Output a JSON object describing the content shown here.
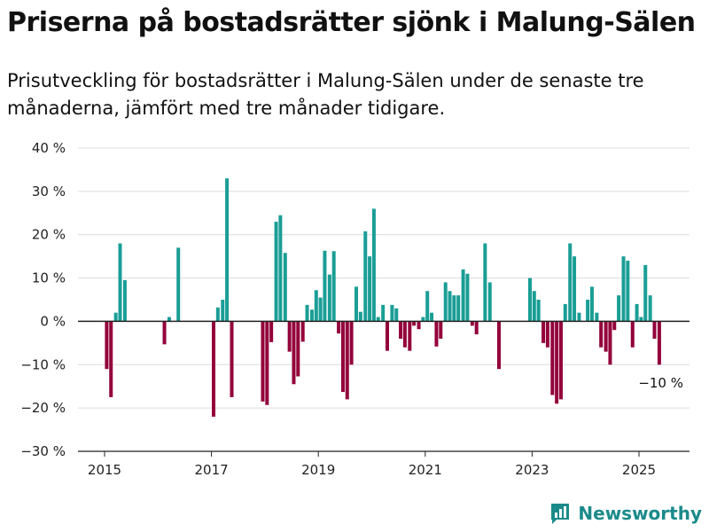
{
  "title": "Priserna på bostadsrätter sjönk i Malung-Sälen",
  "subtitle": "Prisutveckling för bostadsrätter i Malung-Sälen under de senaste tre månaderna, jämfört med tre månader tidigare.",
  "brand": "Newsworthy",
  "chart_data": {
    "type": "bar",
    "title": "Priserna på bostadsrätter sjönk i Malung-Sälen",
    "subtitle": "Prisutveckling för bostadsrätter i Malung-Sälen under de senaste tre månaderna, jämfört med tre månader tidigare.",
    "xlabel": "",
    "ylabel": "",
    "ylim": [
      -30,
      40
    ],
    "grid": true,
    "y_ticks": [
      -30,
      -20,
      -10,
      0,
      10,
      20,
      30,
      40
    ],
    "y_tick_labels": [
      "−30 %",
      "−20 %",
      "−10 %",
      "0 %",
      "10 %",
      "20 %",
      "30 %",
      "40 %"
    ],
    "x_ticks": [
      2015,
      2017,
      2019,
      2021,
      2023,
      2025
    ],
    "x_tick_labels": [
      "2015",
      "2017",
      "2019",
      "2021",
      "2023",
      "2025"
    ],
    "positive_color": "#1a9e96",
    "negative_color": "#93003a",
    "annotation": "−10 %",
    "bars": [
      {
        "x": 2015.04,
        "value": -11
      },
      {
        "x": 2015.12,
        "value": -17.5
      },
      {
        "x": 2015.21,
        "value": 2
      },
      {
        "x": 2015.29,
        "value": 18
      },
      {
        "x": 2015.38,
        "value": 9.5
      },
      {
        "x": 2016.12,
        "value": -5.3
      },
      {
        "x": 2016.21,
        "value": 1
      },
      {
        "x": 2016.38,
        "value": 17
      },
      {
        "x": 2017.04,
        "value": -22
      },
      {
        "x": 2017.12,
        "value": 3.2
      },
      {
        "x": 2017.21,
        "value": 5
      },
      {
        "x": 2017.29,
        "value": 33
      },
      {
        "x": 2017.38,
        "value": -17.5
      },
      {
        "x": 2017.96,
        "value": -18.5
      },
      {
        "x": 2018.04,
        "value": -19.3
      },
      {
        "x": 2018.12,
        "value": -4.8
      },
      {
        "x": 2018.21,
        "value": 23
      },
      {
        "x": 2018.29,
        "value": 24.5
      },
      {
        "x": 2018.38,
        "value": 15.8
      },
      {
        "x": 2018.46,
        "value": -7
      },
      {
        "x": 2018.54,
        "value": -14.5
      },
      {
        "x": 2018.62,
        "value": -12.7
      },
      {
        "x": 2018.71,
        "value": -4.7
      },
      {
        "x": 2018.79,
        "value": 3.8
      },
      {
        "x": 2018.88,
        "value": 2.7
      },
      {
        "x": 2018.96,
        "value": 7.2
      },
      {
        "x": 2019.04,
        "value": 5.5
      },
      {
        "x": 2019.12,
        "value": 16.3
      },
      {
        "x": 2019.21,
        "value": 10.8
      },
      {
        "x": 2019.29,
        "value": 16.2
      },
      {
        "x": 2019.38,
        "value": -2.8
      },
      {
        "x": 2019.46,
        "value": -16.3
      },
      {
        "x": 2019.54,
        "value": -18
      },
      {
        "x": 2019.62,
        "value": -10
      },
      {
        "x": 2019.71,
        "value": 8
      },
      {
        "x": 2019.79,
        "value": 2.2
      },
      {
        "x": 2019.88,
        "value": 20.8
      },
      {
        "x": 2019.96,
        "value": 15
      },
      {
        "x": 2020.04,
        "value": 26
      },
      {
        "x": 2020.12,
        "value": 1
      },
      {
        "x": 2020.21,
        "value": 3.8
      },
      {
        "x": 2020.29,
        "value": -6.8
      },
      {
        "x": 2020.38,
        "value": 3.8
      },
      {
        "x": 2020.46,
        "value": 3
      },
      {
        "x": 2020.54,
        "value": -4
      },
      {
        "x": 2020.62,
        "value": -6
      },
      {
        "x": 2020.71,
        "value": -6.8
      },
      {
        "x": 2020.79,
        "value": -1
      },
      {
        "x": 2020.88,
        "value": -1.8
      },
      {
        "x": 2020.96,
        "value": 1
      },
      {
        "x": 2021.04,
        "value": 7
      },
      {
        "x": 2021.12,
        "value": 2
      },
      {
        "x": 2021.21,
        "value": -5.8
      },
      {
        "x": 2021.29,
        "value": -4
      },
      {
        "x": 2021.38,
        "value": 9
      },
      {
        "x": 2021.46,
        "value": 7
      },
      {
        "x": 2021.54,
        "value": 6
      },
      {
        "x": 2021.62,
        "value": 6
      },
      {
        "x": 2021.71,
        "value": 12
      },
      {
        "x": 2021.79,
        "value": 11
      },
      {
        "x": 2021.88,
        "value": -1
      },
      {
        "x": 2021.96,
        "value": -3
      },
      {
        "x": 2022.12,
        "value": 18
      },
      {
        "x": 2022.21,
        "value": 9
      },
      {
        "x": 2022.38,
        "value": -11
      },
      {
        "x": 2022.96,
        "value": 10
      },
      {
        "x": 2023.04,
        "value": 7
      },
      {
        "x": 2023.12,
        "value": 5
      },
      {
        "x": 2023.21,
        "value": -5
      },
      {
        "x": 2023.29,
        "value": -6
      },
      {
        "x": 2023.38,
        "value": -17
      },
      {
        "x": 2023.46,
        "value": -19
      },
      {
        "x": 2023.54,
        "value": -18
      },
      {
        "x": 2023.62,
        "value": 4
      },
      {
        "x": 2023.71,
        "value": 18
      },
      {
        "x": 2023.79,
        "value": 15
      },
      {
        "x": 2023.88,
        "value": 2
      },
      {
        "x": 2024.04,
        "value": 5
      },
      {
        "x": 2024.12,
        "value": 8
      },
      {
        "x": 2024.21,
        "value": 2
      },
      {
        "x": 2024.29,
        "value": -6
      },
      {
        "x": 2024.38,
        "value": -7
      },
      {
        "x": 2024.46,
        "value": -10
      },
      {
        "x": 2024.54,
        "value": -2
      },
      {
        "x": 2024.62,
        "value": 6
      },
      {
        "x": 2024.71,
        "value": 15
      },
      {
        "x": 2024.79,
        "value": 14
      },
      {
        "x": 2024.88,
        "value": -6
      },
      {
        "x": 2024.96,
        "value": 4
      },
      {
        "x": 2025.04,
        "value": 1
      },
      {
        "x": 2025.12,
        "value": 13
      },
      {
        "x": 2025.21,
        "value": 6
      },
      {
        "x": 2025.29,
        "value": -4
      },
      {
        "x": 2025.38,
        "value": -10
      }
    ]
  }
}
